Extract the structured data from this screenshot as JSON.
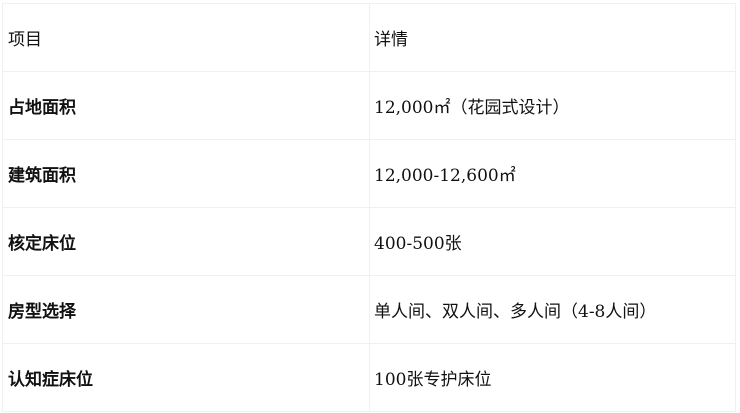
{
  "table": {
    "headers": [
      "项目",
      "详情"
    ],
    "rows": [
      [
        "占地面积",
        "12,000㎡（花园式设计）"
      ],
      [
        "建筑面积",
        "12,000-12,600㎡"
      ],
      [
        "核定床位",
        "400-500张"
      ],
      [
        "房型选择",
        "单人间、双人间、多人间（4-8人间）"
      ],
      [
        "认知症床位",
        "100张专护床位"
      ]
    ]
  }
}
